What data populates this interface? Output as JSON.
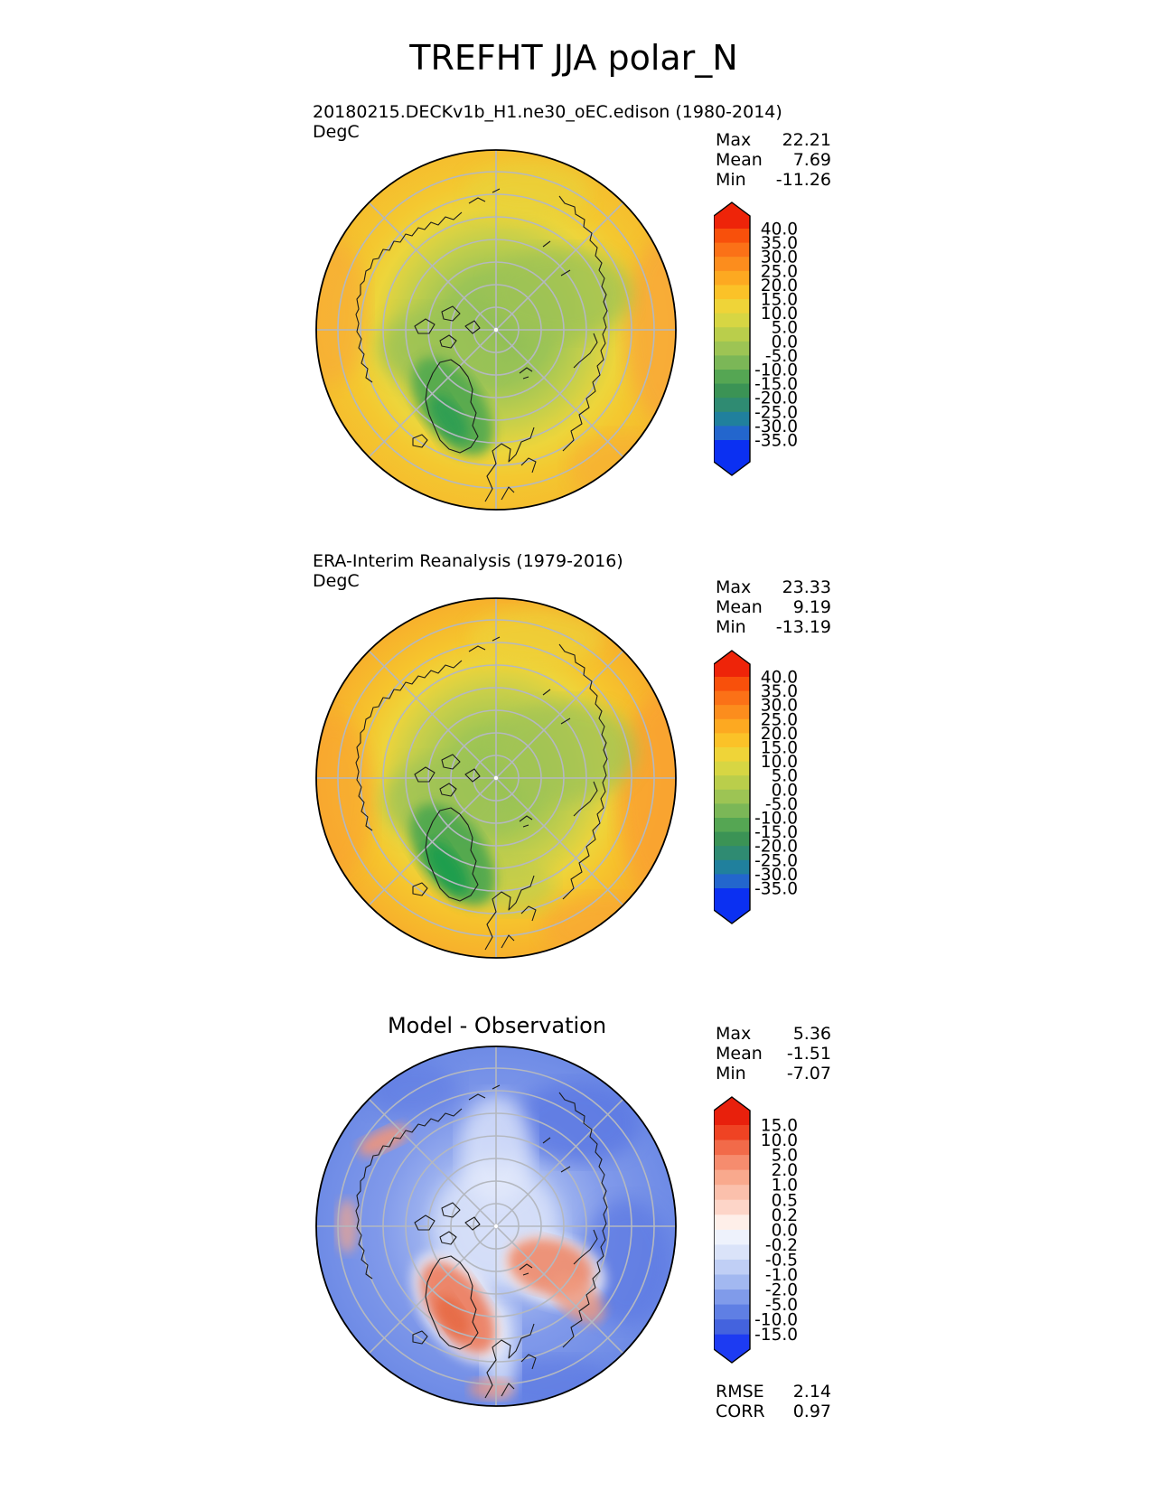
{
  "title": "TREFHT JJA polar_N",
  "chart_data": {
    "type": "heatmap",
    "subtype": "polar-stereographic-contour-maps",
    "projection": "north-polar-stereographic",
    "variable": "TREFHT",
    "season": "JJA",
    "region": "polar_N",
    "units": "DegC",
    "panels": [
      {
        "name": "model",
        "title": "20180215.DECKv1b_H1.ne30_oEC.edison (1980-2014)",
        "units": "DegC",
        "stats_rows": [
          {
            "label": "Max",
            "value": "22.21"
          },
          {
            "label": "Mean",
            "value": "7.69"
          },
          {
            "label": "Min",
            "value": "-11.26"
          }
        ],
        "field_description": "Yellow-orange (15-25 DegC) at the outer mid-latitudes, grading to yellow-green and green (0-10 DegC) over the central Arctic with a darker green cold core (<0 DegC) over Greenland.",
        "colorbar": {
          "extend": "both",
          "ticks": [
            "40.0",
            "35.0",
            "30.0",
            "25.0",
            "20.0",
            "15.0",
            "10.0",
            "5.0",
            "0.0",
            "-5.0",
            "-10.0",
            "-15.0",
            "-20.0",
            "-25.0",
            "-30.0",
            "-35.0"
          ],
          "segment_colors": [
            "#F8500B",
            "#FB7117",
            "#FC8D1D",
            "#FDA921",
            "#FBC228",
            "#EFD438",
            "#D7D643",
            "#BACE4B",
            "#9DC454",
            "#7BB757",
            "#55A653",
            "#3B9355",
            "#2F8B72",
            "#20809D",
            "#2366CD"
          ],
          "extend_top_color": "#EE2409",
          "extend_bottom_color": "#0B30F2"
        }
      },
      {
        "name": "observation",
        "title": "ERA-Interim Reanalysis (1979-2016)",
        "units": "DegC",
        "stats_rows": [
          {
            "label": "Max",
            "value": "23.33"
          },
          {
            "label": "Mean",
            "value": "9.19"
          },
          {
            "label": "Min",
            "value": "-13.19"
          }
        ],
        "field_description": "Similar pattern but warmer: stronger orange (20-25 DegC) around the rim, green central Arctic and an intense dark-green cold core (<-5 DegC) over Greenland.",
        "colorbar": {
          "extend": "both",
          "ticks": [
            "40.0",
            "35.0",
            "30.0",
            "25.0",
            "20.0",
            "15.0",
            "10.0",
            "5.0",
            "0.0",
            "-5.0",
            "-10.0",
            "-15.0",
            "-20.0",
            "-25.0",
            "-30.0",
            "-35.0"
          ],
          "segment_colors": [
            "#F8500B",
            "#FB7117",
            "#FC8D1D",
            "#FDA921",
            "#FBC228",
            "#EFD438",
            "#D7D643",
            "#BACE4B",
            "#9DC454",
            "#7BB757",
            "#55A653",
            "#3B9355",
            "#2F8B72",
            "#20809D",
            "#2366CD"
          ],
          "extend_top_color": "#EE2409",
          "extend_bottom_color": "#0B30F2"
        }
      },
      {
        "name": "difference",
        "title": "Model - Observation",
        "stats_rows": [
          {
            "label": "Max",
            "value": "5.36"
          },
          {
            "label": "Mean",
            "value": "-1.51"
          },
          {
            "label": "Min",
            "value": "-7.07"
          }
        ],
        "metrics_rows": [
          {
            "label": "RMSE",
            "value": "2.14"
          },
          {
            "label": "CORR",
            "value": "0.97"
          }
        ],
        "field_description": "Broad cold bias (blue, -1 to -5 DegC) over most oceans and land, near-zero (white) around the pole, warm bias (red, +1 to +5 DegC) over Greenland, eastern Siberia and scattered coastal strips.",
        "colorbar": {
          "extend": "both",
          "ticks": [
            "15.0",
            "10.0",
            "5.0",
            "2.0",
            "1.0",
            "0.5",
            "0.2",
            "0.0",
            "-0.2",
            "-0.5",
            "-1.0",
            "-2.0",
            "-5.0",
            "-10.0",
            "-15.0"
          ],
          "segment_colors": [
            "#EF4323",
            "#F26A49",
            "#F68C6E",
            "#F9A98D",
            "#FBC0AC",
            "#FDD5C8",
            "#FEEFE9",
            "#EEF2FC",
            "#DAE3F9",
            "#C0CFF5",
            "#A2B8F0",
            "#809BEA",
            "#5F7FE4",
            "#4463DE"
          ],
          "extend_top_color": "#E8200C",
          "extend_bottom_color": "#1D3BF2"
        }
      }
    ],
    "layout": {
      "legend_position": "right-of-each-map",
      "grid": "polar graticule, 7 latitude rings, 8 meridian spokes",
      "graticule_color": "#B4B8C0",
      "coastline_color": "#1C1C1C"
    }
  }
}
